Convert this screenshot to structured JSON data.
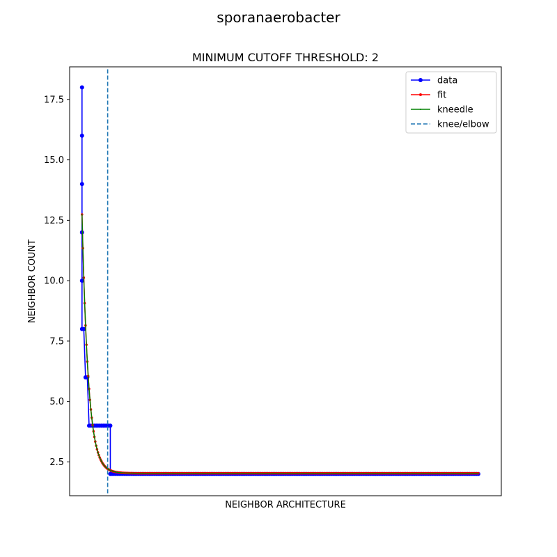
{
  "chart_data": {
    "type": "line",
    "suptitle": "sporanaerobacter",
    "title": "MINIMUM CUTOFF THRESHOLD: 2",
    "xlabel": "NEIGHBOR ARCHITECTURE",
    "ylabel": "NEIGHBOR COUNT",
    "xlim": [
      -7,
      237
    ],
    "ylim": [
      1.1,
      18.85
    ],
    "x_ticks_visible": false,
    "y_ticks": [
      2.5,
      5.0,
      7.5,
      10.0,
      12.5,
      15.0,
      17.5
    ],
    "y_tick_labels": [
      "2.5",
      "5.0",
      "7.5",
      "10.0",
      "12.5",
      "15.0",
      "17.5"
    ],
    "grid": false,
    "legend_position": "top-right",
    "knee_x": 14.5,
    "knee_ymin": 1.2,
    "knee_ymax": 18.8,
    "fit_curve": {
      "a": 10.71,
      "k": 0.28,
      "c": 2.03,
      "x_start": 0,
      "x_end": 224
    },
    "series": [
      {
        "name": "data",
        "color": "#0000ff",
        "marker": "circle",
        "segments": [
          {
            "x": [
              0,
              0,
              0,
              0,
              0,
              0
            ],
            "y": [
              18,
              16,
              14,
              12,
              10,
              8
            ]
          },
          {
            "x": [
              1,
              2,
              3,
              4,
              5,
              6,
              7,
              8,
              9,
              10,
              11,
              12,
              13,
              14,
              15,
              16
            ],
            "y": [
              8,
              6,
              6,
              4,
              4,
              4,
              4,
              4,
              4,
              4,
              4,
              4,
              4,
              4,
              4,
              4
            ]
          },
          {
            "x": [
              16,
              224
            ],
            "y": [
              2,
              2
            ]
          }
        ]
      },
      {
        "name": "fit",
        "color": "#ff0000",
        "marker": "point"
      },
      {
        "name": "kneedle",
        "color": "#008000",
        "marker": "pixel"
      },
      {
        "name": "knee/elbow",
        "color": "#1f77b4",
        "marker": "none",
        "linestyle": "dashed"
      }
    ]
  }
}
